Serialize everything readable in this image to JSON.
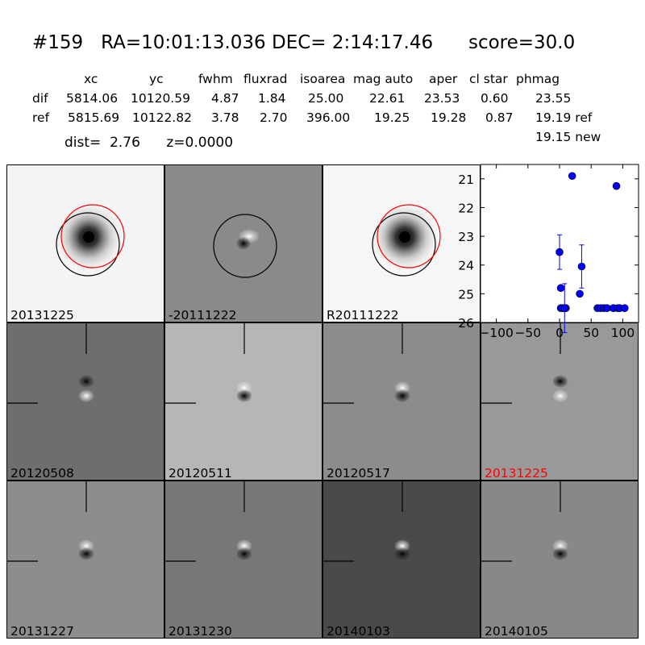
{
  "title": "#159   RA=10:01:13.036 DEC= 2:14:17.46      score=30.0",
  "table": {
    "headers": [
      "xc",
      "yc",
      "fwhm",
      "fluxrad",
      "isoarea",
      "mag auto",
      "aper",
      "cl star",
      "phmag"
    ],
    "rows": [
      {
        "label": "dif",
        "values": [
          "5814.06",
          "10120.59",
          "4.87",
          "1.84",
          "25.00",
          "22.61",
          "23.53",
          "0.60",
          "23.55"
        ]
      },
      {
        "label": "ref",
        "values": [
          "5815.69",
          "10122.82",
          "3.78",
          "2.70",
          "396.00",
          "19.25",
          "19.28",
          "0.87",
          "19.19 ref"
        ]
      }
    ],
    "extra": "19.15 new"
  },
  "dist_line": "dist=  2.76      z=0.0000",
  "panels": [
    {
      "label": "20131225",
      "kind": "new",
      "highlight": false
    },
    {
      "label": "-20111222",
      "kind": "diff",
      "highlight": false
    },
    {
      "label": "R20111222",
      "kind": "ref",
      "highlight": false
    },
    {
      "label": "20120508",
      "kind": "stamp",
      "highlight": false
    },
    {
      "label": "20120511",
      "kind": "stamp",
      "highlight": false
    },
    {
      "label": "20120517",
      "kind": "stamp",
      "highlight": false
    },
    {
      "label": "20131225",
      "kind": "stamp",
      "highlight": true
    },
    {
      "label": "20131227",
      "kind": "stamp",
      "highlight": false
    },
    {
      "label": "20131230",
      "kind": "stamp",
      "highlight": false
    },
    {
      "label": "20140103",
      "kind": "stamp",
      "highlight": false
    },
    {
      "label": "20140105",
      "kind": "stamp",
      "highlight": false
    }
  ],
  "colors": {
    "circle_red": "#ff0000",
    "circle_black": "#000000",
    "points": "#0000ff",
    "highlight_label": "#ff0000"
  },
  "chart_data": {
    "type": "scatter",
    "title": "",
    "xlabel": "",
    "ylabel": "",
    "xlim": [
      -125,
      125
    ],
    "ylim": [
      26,
      20.5
    ],
    "x_ticks": [
      -100,
      -50,
      0,
      50,
      100
    ],
    "y_ticks": [
      21,
      22,
      23,
      24,
      25,
      26
    ],
    "grid": false,
    "series": [
      {
        "points": [
          {
            "x": 0,
            "y": 23.55,
            "err": 0.6
          },
          {
            "x": 2,
            "y": 24.8,
            "err": 0
          },
          {
            "x": 2,
            "y": 25.5,
            "err": 0
          },
          {
            "x": 5,
            "y": 25.5,
            "err": 0
          },
          {
            "x": 8,
            "y": 25.5,
            "err": 0
          },
          {
            "x": 10,
            "y": 25.5,
            "err": 0
          },
          {
            "x": 8,
            "y": 25.5,
            "err": 0.85
          },
          {
            "x": 20,
            "y": 20.9,
            "err": 0
          },
          {
            "x": 32,
            "y": 25.0,
            "err": 0
          },
          {
            "x": 35,
            "y": 24.05,
            "err": 0.75
          },
          {
            "x": 60,
            "y": 25.5,
            "err": 0
          },
          {
            "x": 65,
            "y": 25.5,
            "err": 0
          },
          {
            "x": 70,
            "y": 25.5,
            "err": 0
          },
          {
            "x": 75,
            "y": 25.5,
            "err": 0
          },
          {
            "x": 85,
            "y": 25.5,
            "err": 0
          },
          {
            "x": 90,
            "y": 21.25,
            "err": 0
          },
          {
            "x": 92,
            "y": 25.5,
            "err": 0
          },
          {
            "x": 95,
            "y": 25.5,
            "err": 0
          },
          {
            "x": 103,
            "y": 25.5,
            "err": 0
          }
        ]
      }
    ]
  }
}
